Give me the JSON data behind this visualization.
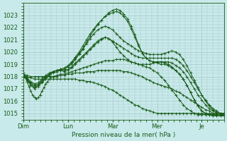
{
  "bg_color": "#c8eaea",
  "grid_color": "#a8c8c8",
  "line_color": "#1a5c1a",
  "ylim": [
    1014.5,
    1024.0
  ],
  "yticks": [
    1015,
    1016,
    1017,
    1018,
    1019,
    1020,
    1021,
    1022,
    1023
  ],
  "xlabel": "Pression niveau de la mer( hPa )",
  "day_labels": [
    "Dim",
    "Lun",
    "Mar",
    "Mer",
    "Je"
  ],
  "day_positions": [
    0,
    24,
    48,
    72,
    96
  ],
  "total_hours": 108,
  "series": [
    {
      "x": [
        0,
        2,
        4,
        6,
        8,
        10,
        12,
        14,
        16,
        18,
        20,
        22,
        24,
        26,
        28,
        30,
        32,
        34,
        36,
        38,
        40,
        42,
        44,
        46,
        48,
        50,
        52,
        54,
        56,
        58,
        60,
        62,
        64,
        66,
        68,
        70,
        72,
        74,
        76,
        78,
        80,
        82,
        84,
        86,
        88,
        90,
        92,
        94,
        96,
        98,
        100,
        102,
        104,
        106,
        108
      ],
      "y": [
        1018.2,
        1017.8,
        1017.3,
        1017.0,
        1017.2,
        1017.5,
        1017.8,
        1018.1,
        1018.3,
        1018.4,
        1018.5,
        1018.6,
        1018.8,
        1019.1,
        1019.5,
        1019.9,
        1020.3,
        1020.8,
        1021.3,
        1021.8,
        1022.2,
        1022.6,
        1022.9,
        1023.2,
        1023.4,
        1023.5,
        1023.4,
        1023.1,
        1022.7,
        1022.1,
        1021.4,
        1020.6,
        1019.9,
        1019.5,
        1019.3,
        1019.2,
        1019.1,
        1019.0,
        1019.0,
        1018.9,
        1018.7,
        1018.5,
        1018.2,
        1017.8,
        1017.3,
        1016.7,
        1016.1,
        1015.6,
        1015.2,
        1015.0,
        1014.9,
        1014.8,
        1014.8,
        1014.8,
        1014.8
      ]
    },
    {
      "x": [
        0,
        2,
        4,
        6,
        8,
        10,
        12,
        14,
        16,
        18,
        20,
        22,
        24,
        26,
        28,
        30,
        32,
        34,
        36,
        38,
        40,
        42,
        44,
        46,
        48,
        50,
        52,
        54,
        56,
        58,
        60,
        62,
        64,
        66,
        68,
        70,
        72,
        74,
        76,
        78,
        80,
        82,
        84,
        86,
        88,
        90,
        92,
        94,
        96,
        98,
        100,
        102,
        104,
        106,
        108
      ],
      "y": [
        1018.0,
        1017.7,
        1017.3,
        1017.1,
        1017.3,
        1017.6,
        1017.9,
        1018.2,
        1018.4,
        1018.5,
        1018.6,
        1018.7,
        1018.9,
        1019.2,
        1019.6,
        1020.0,
        1020.5,
        1021.0,
        1021.5,
        1021.9,
        1022.3,
        1022.6,
        1022.9,
        1023.1,
        1023.2,
        1023.3,
        1023.2,
        1022.9,
        1022.5,
        1021.9,
        1021.2,
        1020.5,
        1019.9,
        1019.5,
        1019.3,
        1019.2,
        1019.2,
        1019.2,
        1019.1,
        1019.0,
        1018.8,
        1018.5,
        1018.2,
        1017.8,
        1017.3,
        1016.7,
        1016.1,
        1015.6,
        1015.2,
        1015.0,
        1014.9,
        1014.8,
        1014.8,
        1014.8,
        1014.8
      ]
    },
    {
      "x": [
        0,
        2,
        4,
        6,
        8,
        10,
        12,
        14,
        16,
        18,
        20,
        22,
        24,
        26,
        28,
        30,
        32,
        34,
        36,
        38,
        40,
        42,
        44,
        46,
        48,
        50,
        52,
        54,
        56,
        58,
        60,
        62,
        64,
        66,
        68,
        70,
        72,
        74,
        76,
        78,
        80,
        82,
        84,
        86,
        88,
        90,
        92,
        94,
        96,
        98,
        100,
        102,
        104,
        106,
        108
      ],
      "y": [
        1018.1,
        1017.8,
        1017.4,
        1017.2,
        1017.3,
        1017.6,
        1017.9,
        1018.2,
        1018.4,
        1018.5,
        1018.6,
        1018.6,
        1018.8,
        1019.0,
        1019.4,
        1019.8,
        1020.2,
        1020.7,
        1021.1,
        1021.5,
        1021.8,
        1022.0,
        1022.1,
        1022.0,
        1021.8,
        1021.5,
        1021.2,
        1020.9,
        1020.7,
        1020.5,
        1020.3,
        1020.1,
        1020.0,
        1019.9,
        1019.8,
        1019.8,
        1019.8,
        1019.8,
        1019.9,
        1020.0,
        1020.1,
        1020.0,
        1019.8,
        1019.4,
        1018.9,
        1018.3,
        1017.7,
        1017.1,
        1016.5,
        1016.0,
        1015.6,
        1015.3,
        1015.1,
        1015.0,
        1015.0
      ]
    },
    {
      "x": [
        0,
        2,
        4,
        6,
        8,
        10,
        12,
        14,
        16,
        18,
        20,
        22,
        24,
        26,
        28,
        30,
        32,
        34,
        36,
        38,
        40,
        42,
        44,
        46,
        48,
        50,
        52,
        54,
        56,
        58,
        60,
        62,
        64,
        66,
        68,
        70,
        72,
        74,
        76,
        78,
        80,
        82,
        84,
        86,
        88,
        90,
        92,
        94,
        96,
        98,
        100,
        102,
        104,
        106,
        108
      ],
      "y": [
        1018.0,
        1017.8,
        1017.5,
        1017.3,
        1017.4,
        1017.7,
        1018.0,
        1018.2,
        1018.4,
        1018.5,
        1018.5,
        1018.5,
        1018.6,
        1018.8,
        1019.1,
        1019.4,
        1019.7,
        1020.0,
        1020.3,
        1020.6,
        1020.9,
        1021.1,
        1021.2,
        1021.1,
        1020.9,
        1020.7,
        1020.5,
        1020.3,
        1020.1,
        1019.9,
        1019.7,
        1019.6,
        1019.5,
        1019.5,
        1019.5,
        1019.5,
        1019.5,
        1019.5,
        1019.5,
        1019.5,
        1019.5,
        1019.4,
        1019.2,
        1018.9,
        1018.5,
        1018.0,
        1017.5,
        1017.0,
        1016.5,
        1016.1,
        1015.7,
        1015.4,
        1015.2,
        1015.0,
        1015.0
      ]
    },
    {
      "x": [
        0,
        2,
        4,
        6,
        8,
        10,
        12,
        14,
        16,
        18,
        20,
        22,
        24,
        26,
        28,
        30,
        32,
        34,
        36,
        38,
        40,
        42,
        44,
        46,
        48,
        50,
        52,
        54,
        56,
        58,
        60,
        62,
        64,
        66,
        68,
        70,
        72,
        74,
        76,
        78,
        80,
        82,
        84,
        86,
        88,
        90,
        92,
        94,
        96,
        98,
        100,
        102,
        104,
        106,
        108
      ],
      "y": [
        1018.1,
        1017.9,
        1017.6,
        1017.4,
        1017.5,
        1017.8,
        1018.1,
        1018.3,
        1018.4,
        1018.5,
        1018.5,
        1018.4,
        1018.5,
        1018.7,
        1019.0,
        1019.3,
        1019.6,
        1019.9,
        1020.2,
        1020.5,
        1020.8,
        1021.0,
        1021.2,
        1021.1,
        1020.8,
        1020.4,
        1020.0,
        1019.7,
        1019.4,
        1019.2,
        1019.1,
        1019.0,
        1019.0,
        1019.0,
        1019.0,
        1019.1,
        1019.2,
        1019.2,
        1019.2,
        1019.2,
        1019.1,
        1018.9,
        1018.7,
        1018.4,
        1018.0,
        1017.5,
        1017.0,
        1016.5,
        1016.1,
        1015.7,
        1015.4,
        1015.2,
        1015.0,
        1015.0,
        1015.0
      ]
    },
    {
      "x": [
        0,
        1,
        2,
        3,
        4,
        5,
        6,
        7,
        8,
        9,
        10,
        11,
        12,
        13,
        14,
        16,
        18,
        20,
        22,
        24,
        26,
        28,
        30,
        32,
        34,
        36,
        38,
        40,
        42,
        44,
        46,
        48,
        50,
        52,
        54,
        56,
        58,
        60,
        62,
        64,
        66,
        68,
        70,
        72,
        74,
        76,
        78,
        80,
        82,
        84,
        86,
        88,
        90,
        92,
        94,
        96,
        98,
        100,
        102,
        104,
        106,
        108
      ],
      "y": [
        1018.3,
        1018.0,
        1017.6,
        1017.2,
        1016.8,
        1016.5,
        1016.3,
        1016.2,
        1016.3,
        1016.5,
        1016.8,
        1017.1,
        1017.4,
        1017.6,
        1017.8,
        1018.0,
        1018.1,
        1018.2,
        1018.2,
        1018.3,
        1018.4,
        1018.5,
        1018.6,
        1018.7,
        1018.8,
        1018.9,
        1019.0,
        1019.1,
        1019.2,
        1019.3,
        1019.3,
        1019.3,
        1019.4,
        1019.4,
        1019.4,
        1019.3,
        1019.2,
        1019.1,
        1019.0,
        1018.9,
        1018.8,
        1018.7,
        1018.5,
        1018.3,
        1018.0,
        1017.7,
        1017.3,
        1016.9,
        1016.5,
        1016.1,
        1015.7,
        1015.4,
        1015.2,
        1015.0,
        1014.9,
        1014.9,
        1014.9,
        1014.9,
        1014.9,
        1014.9,
        1014.9,
        1014.9
      ]
    },
    {
      "x": [
        0,
        2,
        4,
        6,
        8,
        10,
        12,
        14,
        16,
        18,
        20,
        22,
        24,
        26,
        28,
        30,
        32,
        34,
        36,
        38,
        40,
        42,
        44,
        46,
        48,
        50,
        52,
        54,
        56,
        58,
        60,
        62,
        64,
        66,
        68,
        70,
        72,
        74,
        76,
        78,
        80,
        82,
        84,
        86,
        88,
        90,
        92,
        94,
        96,
        98,
        100,
        102,
        104,
        106,
        108
      ],
      "y": [
        1018.2,
        1018.1,
        1018.0,
        1018.0,
        1018.0,
        1018.0,
        1018.0,
        1018.0,
        1018.0,
        1018.0,
        1018.1,
        1018.1,
        1018.2,
        1018.2,
        1018.3,
        1018.3,
        1018.3,
        1018.4,
        1018.4,
        1018.4,
        1018.5,
        1018.5,
        1018.5,
        1018.5,
        1018.5,
        1018.5,
        1018.5,
        1018.4,
        1018.4,
        1018.3,
        1018.2,
        1018.1,
        1018.0,
        1017.8,
        1017.7,
        1017.5,
        1017.4,
        1017.3,
        1017.2,
        1017.1,
        1017.0,
        1016.8,
        1016.7,
        1016.5,
        1016.3,
        1016.1,
        1015.9,
        1015.7,
        1015.5,
        1015.3,
        1015.2,
        1015.0,
        1014.9,
        1014.9,
        1014.8
      ]
    },
    {
      "x": [
        0,
        2,
        4,
        6,
        8,
        10,
        12,
        14,
        16,
        18,
        20,
        22,
        24,
        26,
        28,
        30,
        32,
        34,
        36,
        38,
        40,
        42,
        44,
        46,
        48,
        50,
        52,
        54,
        56,
        58,
        60,
        62,
        64,
        66,
        68,
        70,
        72,
        74,
        76,
        78,
        80,
        82,
        84,
        86,
        88,
        90,
        92,
        94,
        96,
        98,
        100,
        102,
        104,
        106,
        108
      ],
      "y": [
        1018.1,
        1018.0,
        1017.9,
        1017.8,
        1017.8,
        1017.8,
        1017.8,
        1017.8,
        1017.8,
        1017.8,
        1017.8,
        1017.8,
        1017.8,
        1017.8,
        1017.8,
        1017.7,
        1017.7,
        1017.6,
        1017.6,
        1017.5,
        1017.4,
        1017.3,
        1017.2,
        1017.0,
        1016.9,
        1016.7,
        1016.5,
        1016.3,
        1016.1,
        1015.9,
        1015.7,
        1015.6,
        1015.4,
        1015.3,
        1015.2,
        1015.1,
        1015.0,
        1015.0,
        1015.0,
        1015.0,
        1015.0,
        1015.0,
        1015.0,
        1015.0,
        1015.0,
        1015.0,
        1015.0,
        1015.0,
        1015.0,
        1015.0,
        1015.0,
        1015.0,
        1015.0,
        1015.0,
        1015.0
      ]
    }
  ]
}
